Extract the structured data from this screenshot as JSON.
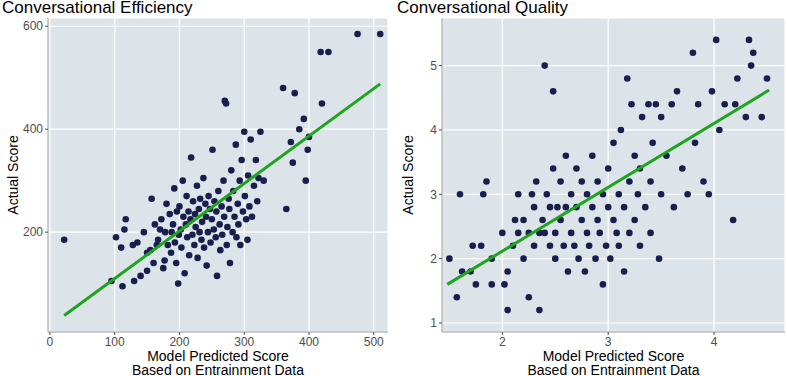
{
  "chart_data": [
    {
      "type": "scatter",
      "title": "Conversational Efficiency",
      "xlabel": "Model Predicted Score\nBased on Entrainment Data",
      "ylabel": "Actual Score",
      "xlim": [
        -3,
        522
      ],
      "ylim": [
        6,
        616
      ],
      "xticks": [
        0,
        100,
        200,
        300,
        400,
        500
      ],
      "yticks": [
        200,
        400,
        600
      ],
      "grid": true,
      "color": "#191f4d",
      "x": [
        22,
        95,
        112,
        102,
        110,
        115,
        117,
        128,
        130,
        135,
        140,
        145,
        150,
        150,
        155,
        157,
        160,
        162,
        165,
        167,
        170,
        172,
        175,
        177,
        178,
        180,
        182,
        185,
        187,
        188,
        190,
        192,
        193,
        195,
        196,
        198,
        199,
        200,
        202,
        203,
        205,
        206,
        208,
        210,
        211,
        212,
        214,
        215,
        217,
        218,
        220,
        221,
        223,
        224,
        225,
        227,
        228,
        230,
        231,
        232,
        234,
        235,
        237,
        238,
        240,
        241,
        242,
        244,
        245,
        247,
        248,
        250,
        251,
        253,
        254,
        256,
        257,
        258,
        260,
        262,
        263,
        265,
        266,
        268,
        269,
        270,
        272,
        273,
        274,
        276,
        277,
        278,
        280,
        282,
        283,
        285,
        287,
        288,
        290,
        291,
        293,
        294,
        296,
        298,
        300,
        301,
        303,
        305,
        306,
        308,
        310,
        312,
        315,
        318,
        320,
        322,
        325,
        330,
        360,
        365,
        372,
        375,
        378,
        385,
        392,
        395,
        398,
        400,
        418,
        420,
        430,
        475,
        510
      ],
      "y": [
        185,
        105,
        95,
        190,
        170,
        205,
        225,
        175,
        105,
        180,
        115,
        200,
        160,
        125,
        165,
        265,
        140,
        215,
        175,
        185,
        205,
        225,
        130,
        145,
        200,
        255,
        175,
        235,
        160,
        200,
        215,
        285,
        180,
        140,
        240,
        100,
        195,
        250,
        205,
        170,
        300,
        230,
        120,
        215,
        270,
        190,
        240,
        155,
        225,
        345,
        195,
        260,
        175,
        235,
        210,
        290,
        150,
        245,
        200,
        265,
        185,
        220,
        305,
        170,
        255,
        230,
        135,
        200,
        270,
        245,
        180,
        225,
        360,
        205,
        260,
        190,
        240,
        115,
        280,
        215,
        165,
        250,
        195,
        300,
        230,
        455,
        450,
        175,
        210,
        265,
        245,
        140,
        320,
        200,
        280,
        230,
        370,
        190,
        255,
        215,
        300,
        175,
        340,
        240,
        395,
        270,
        225,
        185,
        310,
        250,
        380,
        230,
        290,
        340,
        260,
        305,
        395,
        300,
        480,
        245,
        375,
        335,
        470,
        400,
        420,
        300,
        360,
        385,
        550,
        450,
        550,
        585,
        585
      ],
      "fit": {
        "x": [
          22,
          510
        ],
        "y": [
          38,
          488
        ],
        "color": "#1ea51e"
      }
    },
    {
      "type": "scatter",
      "title": "Conversational Quality",
      "xlabel": "Model Predicted Score\nBased on Entrainment Data",
      "ylabel": "Actual Score",
      "xlim": [
        1.43,
        4.67
      ],
      "ylim": [
        0.86,
        5.74
      ],
      "xticks": [
        2,
        3,
        4
      ],
      "yticks": [
        1,
        2,
        3,
        4,
        5
      ],
      "grid": true,
      "color": "#191f4d",
      "x": [
        1.5,
        1.57,
        1.6,
        1.62,
        1.7,
        1.72,
        1.75,
        1.8,
        1.82,
        1.85,
        1.9,
        1.9,
        2.0,
        2.02,
        2.05,
        2.05,
        2.1,
        2.12,
        2.15,
        2.15,
        2.2,
        2.2,
        2.25,
        2.25,
        2.28,
        2.3,
        2.3,
        2.32,
        2.35,
        2.35,
        2.38,
        2.4,
        2.4,
        2.42,
        2.45,
        2.45,
        2.48,
        2.48,
        2.5,
        2.5,
        2.52,
        2.55,
        2.55,
        2.58,
        2.6,
        2.6,
        2.62,
        2.65,
        2.65,
        2.68,
        2.7,
        2.7,
        2.72,
        2.75,
        2.75,
        2.78,
        2.8,
        2.8,
        2.82,
        2.85,
        2.85,
        2.88,
        2.9,
        2.9,
        2.92,
        2.95,
        2.95,
        2.98,
        3.0,
        3.0,
        3.02,
        3.05,
        3.05,
        3.08,
        3.1,
        3.1,
        3.12,
        3.15,
        3.15,
        3.18,
        3.2,
        3.2,
        3.22,
        3.25,
        3.25,
        3.28,
        3.3,
        3.3,
        3.32,
        3.35,
        3.38,
        3.4,
        3.4,
        3.42,
        3.45,
        3.48,
        3.5,
        3.5,
        3.55,
        3.6,
        3.62,
        3.65,
        3.7,
        3.75,
        3.8,
        3.82,
        3.85,
        3.9,
        3.95,
        3.98,
        4.02,
        4.05,
        4.1,
        4.18,
        4.2,
        4.22,
        4.3,
        4.33,
        4.35,
        4.37,
        4.45,
        4.5
      ],
      "y": [
        2.0,
        1.4,
        3.0,
        1.8,
        1.8,
        2.2,
        1.6,
        2.2,
        3.0,
        3.2,
        1.6,
        2.0,
        2.4,
        1.6,
        1.8,
        1.2,
        2.2,
        2.6,
        2.4,
        3.0,
        2.0,
        2.6,
        2.4,
        1.4,
        3.0,
        2.8,
        2.2,
        3.2,
        2.4,
        1.2,
        2.6,
        5.0,
        2.4,
        3.0,
        2.8,
        2.2,
        4.6,
        3.4,
        2.4,
        2.0,
        2.8,
        3.2,
        2.6,
        2.2,
        2.8,
        3.6,
        1.8,
        2.4,
        3.0,
        2.2,
        2.8,
        3.4,
        2.0,
        2.6,
        3.2,
        1.8,
        2.4,
        3.0,
        2.2,
        2.8,
        3.6,
        2.0,
        2.6,
        3.2,
        2.4,
        1.6,
        3.0,
        2.2,
        2.8,
        3.4,
        2.0,
        2.6,
        3.8,
        2.4,
        3.0,
        2.2,
        4.0,
        2.8,
        1.8,
        4.8,
        3.2,
        2.4,
        4.4,
        3.6,
        2.6,
        3.0,
        2.2,
        3.4,
        4.2,
        2.8,
        4.4,
        3.2,
        2.4,
        3.8,
        4.4,
        2.0,
        3.0,
        4.2,
        3.6,
        4.4,
        2.8,
        4.6,
        3.4,
        3.0,
        5.2,
        3.8,
        4.4,
        3.2,
        3.0,
        4.6,
        5.4,
        4.0,
        4.4,
        2.6,
        4.4,
        4.8,
        4.2,
        5.4,
        5.0,
        5.2,
        4.2,
        4.8
      ],
      "fit": {
        "x": [
          1.48,
          4.52
        ],
        "y": [
          1.6,
          4.62
        ],
        "color": "#1ea51e"
      }
    }
  ]
}
